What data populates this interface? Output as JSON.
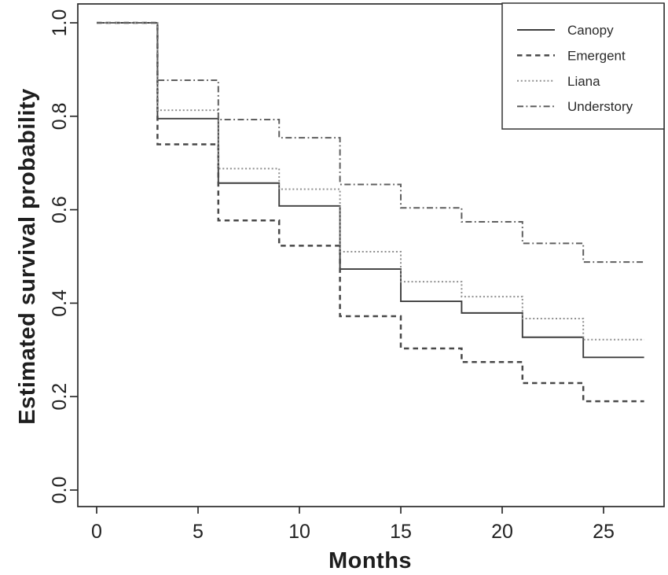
{
  "figure": {
    "background": "#ffffff",
    "axis_color": "#2b2b2b",
    "text_color": "#1e1e1e"
  },
  "chart_data": {
    "type": "line",
    "subtype": "kaplan-meier-step",
    "title": "",
    "xlabel": "Months",
    "ylabel": "Estimated survival probability",
    "xlim": [
      0,
      27
    ],
    "ylim": [
      0.0,
      1.0
    ],
    "x_ticks": [
      0,
      5,
      10,
      15,
      20,
      25
    ],
    "y_ticks": [
      "0.0",
      "0.2",
      "0.4",
      "0.6",
      "0.8",
      "1.0"
    ],
    "grid": false,
    "legend_position": "top-right",
    "step_months": [
      0,
      3,
      6,
      9,
      12,
      15,
      18,
      21,
      24
    ],
    "curve_end_month": 27,
    "series": [
      {
        "name": "Canopy",
        "linestyle": "solid",
        "color": "#3d3d3d",
        "values": [
          1.0,
          0.795,
          0.657,
          0.608,
          0.473,
          0.404,
          0.379,
          0.327,
          0.284
        ]
      },
      {
        "name": "Emergent",
        "linestyle": "dashed",
        "color": "#484848",
        "values": [
          1.0,
          0.74,
          0.577,
          0.523,
          0.372,
          0.303,
          0.274,
          0.229,
          0.19
        ]
      },
      {
        "name": "Liana",
        "linestyle": "dotted",
        "color": "#8f8f8f",
        "values": [
          1.0,
          0.813,
          0.688,
          0.644,
          0.51,
          0.446,
          0.414,
          0.367,
          0.322
        ]
      },
      {
        "name": "Understory",
        "linestyle": "dashdot",
        "color": "#5f5f5f",
        "values": [
          1.0,
          0.877,
          0.793,
          0.754,
          0.654,
          0.604,
          0.574,
          0.528,
          0.488
        ]
      }
    ]
  }
}
